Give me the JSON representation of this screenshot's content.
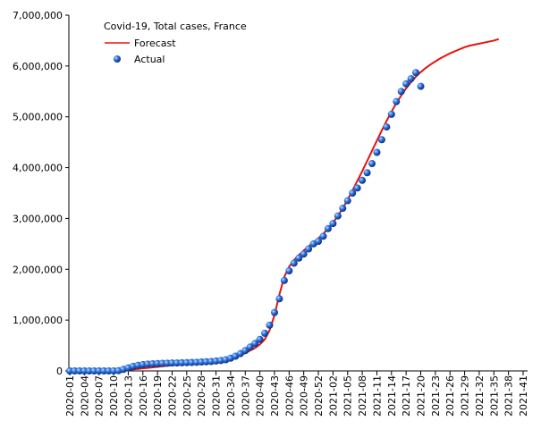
{
  "chart_data": {
    "type": "line",
    "title": "Covid-19, Total cases, France",
    "categories": [
      "2020-01",
      null,
      null,
      "2020-04",
      null,
      null,
      "2020-07",
      null,
      null,
      "2020-10",
      null,
      null,
      "2020-13",
      null,
      null,
      "2020-16",
      null,
      null,
      "2020-19",
      null,
      null,
      "2020-22",
      null,
      null,
      "2020-25",
      null,
      null,
      "2020-28",
      null,
      null,
      "2020-31",
      null,
      null,
      "2020-34",
      null,
      null,
      "2020-37",
      null,
      null,
      "2020-40",
      null,
      null,
      "2020-43",
      null,
      null,
      "2020-46",
      null,
      null,
      "2020-49",
      null,
      null,
      "2020-52",
      null,
      null,
      "2021-02",
      null,
      null,
      "2021-05",
      null,
      null,
      "2021-08",
      null,
      null,
      "2021-11",
      null,
      null,
      "2021-14",
      null,
      null,
      "2021-17",
      null,
      null,
      "2021-20",
      null,
      null,
      "2021-23",
      null,
      null,
      "2021-26",
      null,
      null,
      "2021-29",
      null,
      null,
      "2021-32",
      null,
      null,
      "2021-35",
      null,
      null,
      "2021-38",
      null,
      null,
      "2021-41"
    ],
    "series": [
      {
        "name": "Forecast",
        "color": "#e8120c",
        "style": "line",
        "values": [
          0,
          0,
          0,
          0,
          0,
          0,
          0,
          0,
          0,
          0,
          5000,
          10000,
          20000,
          30000,
          40000,
          50000,
          60000,
          70000,
          80000,
          90000,
          100000,
          110000,
          120000,
          130000,
          140000,
          150000,
          160000,
          170000,
          180000,
          190000,
          200000,
          215000,
          230000,
          250000,
          280000,
          310000,
          350000,
          400000,
          450000,
          520000,
          620000,
          800000,
          1100000,
          1500000,
          1850000,
          2050000,
          2180000,
          2280000,
          2370000,
          2450000,
          2530000,
          2610000,
          2700000,
          2800000,
          2920000,
          3050000,
          3200000,
          3370000,
          3550000,
          3740000,
          3930000,
          4130000,
          4330000,
          4530000,
          4730000,
          4920000,
          5100000,
          5270000,
          5420000,
          5560000,
          5680000,
          5790000,
          5880000,
          5960000,
          6030000,
          6090000,
          6150000,
          6200000,
          6250000,
          6290000,
          6330000,
          6370000,
          6400000,
          6420000,
          6440000,
          6460000,
          6480000,
          6500000,
          6530000,
          null,
          null,
          null,
          null,
          null
        ]
      },
      {
        "name": "Actual",
        "color": "#1f5fd6",
        "style": "marker",
        "values": [
          0,
          0,
          0,
          0,
          0,
          0,
          0,
          0,
          0,
          1000,
          5000,
          30000,
          60000,
          90000,
          110000,
          125000,
          135000,
          140000,
          145000,
          150000,
          152000,
          155000,
          157000,
          160000,
          163000,
          166000,
          170000,
          175000,
          180000,
          185000,
          195000,
          205000,
          220000,
          250000,
          290000,
          340000,
          400000,
          470000,
          540000,
          620000,
          740000,
          900000,
          1150000,
          1420000,
          1780000,
          1970000,
          2120000,
          2220000,
          2300000,
          2400000,
          2500000,
          2550000,
          2650000,
          2800000,
          2900000,
          3050000,
          3200000,
          3350000,
          3500000,
          3600000,
          3750000,
          3900000,
          4080000,
          4300000,
          4550000,
          4800000,
          5050000,
          5300000,
          5500000,
          5650000,
          5750000,
          5870000,
          5600000,
          null,
          null,
          null,
          null,
          null,
          null,
          null,
          null,
          null,
          null,
          null,
          null,
          null,
          null,
          null,
          null,
          null,
          null,
          null,
          null,
          null
        ]
      }
    ],
    "ylim": [
      0,
      7000000
    ],
    "yticks": [
      0,
      {
        "value": 1000000,
        "label": "1,000,000"
      },
      {
        "value": 2000000,
        "label": "2,000,000"
      },
      {
        "value": 3000000,
        "label": "3,000,000"
      },
      {
        "value": 4000000,
        "label": "4,000,000"
      },
      {
        "value": 5000000,
        "label": "5,000,000"
      },
      {
        "value": 6000000,
        "label": "6,000,000"
      },
      {
        "value": 7000000,
        "label": "7,000,000"
      }
    ],
    "grid": false,
    "legend": "top-left"
  }
}
